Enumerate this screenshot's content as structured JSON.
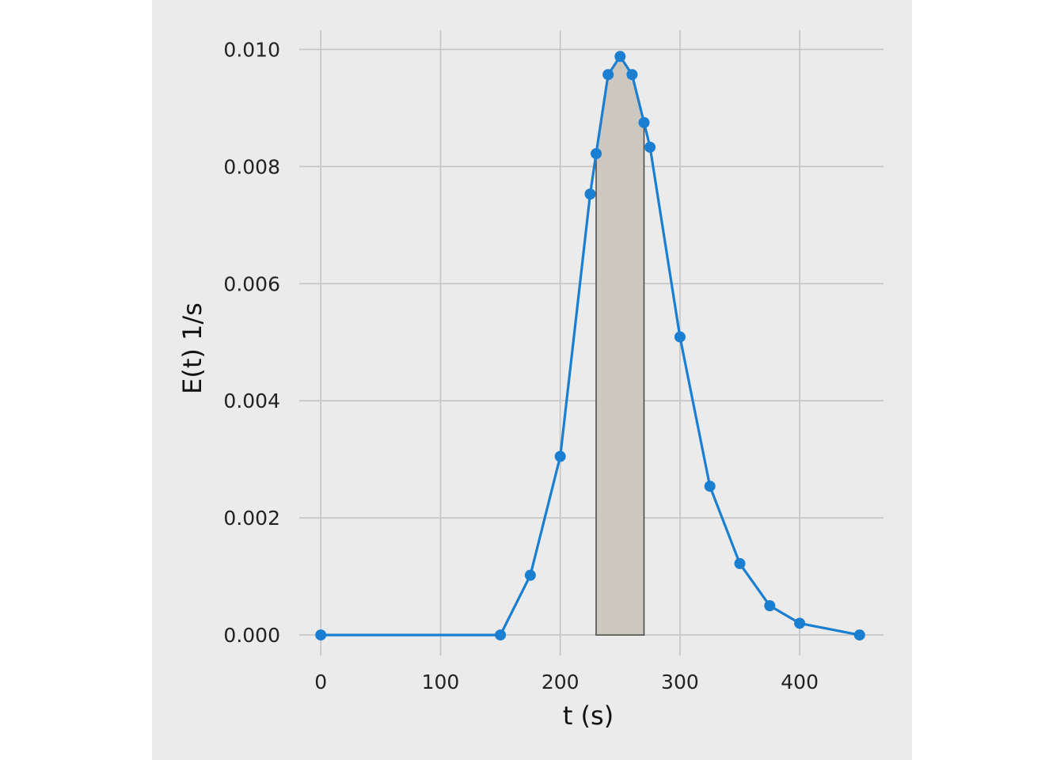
{
  "chart_data": {
    "type": "line",
    "xlabel": "t (s)",
    "ylabel": "E(t) 1/s",
    "xlim": [
      -18,
      470
    ],
    "ylim": [
      -0.00035,
      0.01033
    ],
    "x_ticks": [
      "0",
      "100",
      "200",
      "300",
      "400"
    ],
    "y_ticks": [
      "0.000",
      "0.002",
      "0.004",
      "0.006",
      "0.008",
      "0.010"
    ],
    "grid": true,
    "series": [
      {
        "x": [
          0,
          150,
          175,
          200,
          225,
          230,
          240,
          250,
          260,
          270,
          275,
          300,
          325,
          350,
          375,
          400,
          450
        ],
        "y": [
          0.0,
          0.0,
          0.00102,
          0.00305,
          0.00753,
          0.00822,
          0.00957,
          0.00988,
          0.00957,
          0.00875,
          0.00833,
          0.00509,
          0.00254,
          0.00122,
          0.0005,
          0.0002,
          0.0
        ],
        "color": "#1a7fd1"
      }
    ],
    "shaded_region": {
      "x_start": 230,
      "x_end": 270,
      "fill": "#ccc8bf",
      "stroke": "#444444"
    },
    "colors": {
      "background": "#ebebeb",
      "grid": "#c4c4c4",
      "line": "#1a7fd1"
    }
  }
}
